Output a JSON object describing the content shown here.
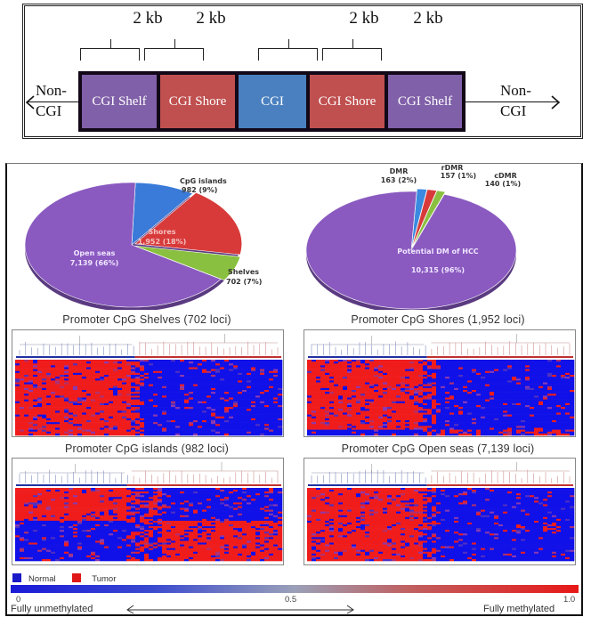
{
  "top_diagram": {
    "kb_labels": [
      "2 kb",
      "2 kb",
      "2 kb",
      "2 kb"
    ],
    "regions": [
      {
        "label": "CGI Shelf",
        "color": "#8060a8"
      },
      {
        "label": "CGI Shore",
        "color": "#c05050"
      },
      {
        "label": "CGI",
        "color": "#4a80c0"
      },
      {
        "label": "CGI Shore",
        "color": "#c05050"
      },
      {
        "label": "CGI Shelf",
        "color": "#8060a8"
      }
    ],
    "left_label": {
      "line1": "Non-",
      "line2": "CGI"
    },
    "right_label": {
      "line1": "Non-",
      "line2": "CGI"
    }
  },
  "chart_data": [
    {
      "type": "pie",
      "title": "",
      "slices": [
        {
          "name": "CpG islands",
          "value": 982,
          "label": "982 (9%)",
          "color": "#3a7ad8"
        },
        {
          "name": "Shores",
          "value": 1952,
          "label": "1,952 (18%)",
          "color": "#d83a3a"
        },
        {
          "name": "Shelves",
          "value": 702,
          "label": "702 (7%)",
          "color": "#8ac040"
        },
        {
          "name": "Open seas",
          "value": 7139,
          "label": "7,139 (66%)",
          "color": "#8a5ac0"
        }
      ]
    },
    {
      "type": "pie",
      "title": "",
      "slices": [
        {
          "name": "DMR",
          "value": 163,
          "label": "163 (2%)",
          "color": "#3a8ae0"
        },
        {
          "name": "rDMR",
          "value": 157,
          "label": "157 (1%)",
          "color": "#d83a3a"
        },
        {
          "name": "cDMR",
          "value": 140,
          "label": "140 (1%)",
          "color": "#8ac040"
        },
        {
          "name": "Potential DM of HCC",
          "value": 10315,
          "label": "10,315 (96%)",
          "color": "#8a5ac0"
        }
      ]
    },
    {
      "type": "heatmap",
      "title": "Promoter CpG Shelves (702 loci)",
      "pattern": "tumor-hyper",
      "description": "Left cluster (~45% of samples) predominantly methylated (red); right cluster predominantly unmethylated (blue)"
    },
    {
      "type": "heatmap",
      "title": "Promoter CpG Shores (1,952 loci)",
      "pattern": "tumor-hyper-bottom-band",
      "description": "Left cluster predominantly methylated (red); right cluster unmethylated (blue); bottom band reversed"
    },
    {
      "type": "heatmap",
      "title": "Promoter CpG islands (982 loci)",
      "pattern": "quadrant",
      "description": "Top half: left red / right blue; bottom half: left blue / right red"
    },
    {
      "type": "heatmap",
      "title": "Promoter CpG Open seas (7,139 loci)",
      "pattern": "tumor-hyper",
      "description": "Left cluster predominantly methylated (red); right cluster unmethylated (blue)"
    }
  ],
  "legend": {
    "items": [
      {
        "label": "Normal",
        "color": "#1a1ac8"
      },
      {
        "label": "Tumor",
        "color": "#e01818"
      }
    ],
    "scale": {
      "min": "0",
      "mid": "0.5",
      "max": "1.0",
      "min_label": "Fully unmethylated",
      "max_label": "Fully methylated"
    }
  }
}
